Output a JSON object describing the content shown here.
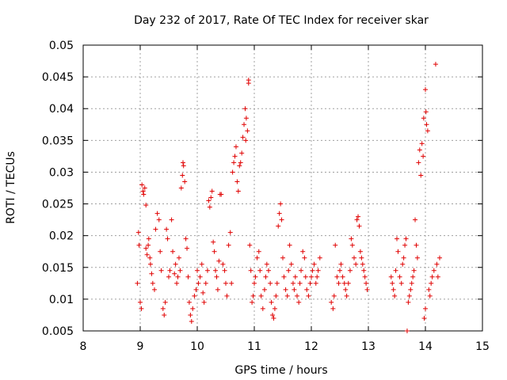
{
  "chart_data": {
    "type": "scatter",
    "title": "Day 232 of 2017, Rate Of TEC Index for receiver skar",
    "xlabel": "GPS time / hours",
    "ylabel": "ROTI / TECUs",
    "xlim": [
      8,
      15
    ],
    "ylim": [
      0.005,
      0.05
    ],
    "xticks": [
      "8",
      "9",
      "10",
      "11",
      "12",
      "13",
      "14",
      "15"
    ],
    "yticks": [
      "0.005",
      "0.01",
      "0.015",
      "0.02",
      "0.025",
      "0.03",
      "0.035",
      "0.04",
      "0.045",
      "0.05"
    ],
    "grid": true,
    "marker": "plus",
    "color": "#e00000",
    "series": [
      {
        "name": "ROTI",
        "points": [
          [
            8.95,
            0.0125
          ],
          [
            8.97,
            0.0205
          ],
          [
            8.98,
            0.0185
          ],
          [
            9.0,
            0.0095
          ],
          [
            9.02,
            0.0085
          ],
          [
            9.03,
            0.028
          ],
          [
            9.05,
            0.027
          ],
          [
            9.06,
            0.0265
          ],
          [
            9.08,
            0.0275
          ],
          [
            9.1,
            0.0248
          ],
          [
            9.1,
            0.018
          ],
          [
            9.12,
            0.017
          ],
          [
            9.14,
            0.0185
          ],
          [
            9.15,
            0.0195
          ],
          [
            9.17,
            0.0165
          ],
          [
            9.18,
            0.0155
          ],
          [
            9.2,
            0.014
          ],
          [
            9.22,
            0.0125
          ],
          [
            9.25,
            0.0115
          ],
          [
            9.27,
            0.021
          ],
          [
            9.3,
            0.0235
          ],
          [
            9.33,
            0.0225
          ],
          [
            9.35,
            0.0175
          ],
          [
            9.37,
            0.0145
          ],
          [
            9.4,
            0.0085
          ],
          [
            9.42,
            0.0075
          ],
          [
            9.44,
            0.0095
          ],
          [
            9.46,
            0.021
          ],
          [
            9.48,
            0.0195
          ],
          [
            9.5,
            0.0135
          ],
          [
            9.52,
            0.0145
          ],
          [
            9.55,
            0.0225
          ],
          [
            9.57,
            0.0175
          ],
          [
            9.6,
            0.014
          ],
          [
            9.62,
            0.0155
          ],
          [
            9.64,
            0.0125
          ],
          [
            9.66,
            0.0135
          ],
          [
            9.68,
            0.0165
          ],
          [
            9.7,
            0.0145
          ],
          [
            9.72,
            0.0275
          ],
          [
            9.74,
            0.0295
          ],
          [
            9.75,
            0.0315
          ],
          [
            9.76,
            0.031
          ],
          [
            9.78,
            0.0285
          ],
          [
            9.8,
            0.0195
          ],
          [
            9.82,
            0.018
          ],
          [
            9.84,
            0.0135
          ],
          [
            9.86,
            0.0095
          ],
          [
            9.88,
            0.0075
          ],
          [
            9.9,
            0.0065
          ],
          [
            9.92,
            0.0085
          ],
          [
            9.95,
            0.0105
          ],
          [
            9.98,
            0.0115
          ],
          [
            10.0,
            0.0145
          ],
          [
            10.02,
            0.0125
          ],
          [
            10.05,
            0.0135
          ],
          [
            10.08,
            0.0155
          ],
          [
            10.1,
            0.011
          ],
          [
            10.12,
            0.0095
          ],
          [
            10.15,
            0.0125
          ],
          [
            10.18,
            0.0145
          ],
          [
            10.2,
            0.0255
          ],
          [
            10.22,
            0.0245
          ],
          [
            10.24,
            0.026
          ],
          [
            10.26,
            0.027
          ],
          [
            10.28,
            0.019
          ],
          [
            10.3,
            0.0175
          ],
          [
            10.32,
            0.0145
          ],
          [
            10.34,
            0.0135
          ],
          [
            10.36,
            0.0115
          ],
          [
            10.38,
            0.016
          ],
          [
            10.4,
            0.0265
          ],
          [
            10.42,
            0.0265
          ],
          [
            10.45,
            0.0155
          ],
          [
            10.48,
            0.0145
          ],
          [
            10.5,
            0.0125
          ],
          [
            10.52,
            0.0105
          ],
          [
            10.55,
            0.0185
          ],
          [
            10.58,
            0.0205
          ],
          [
            10.6,
            0.0125
          ],
          [
            10.62,
            0.03
          ],
          [
            10.64,
            0.0315
          ],
          [
            10.66,
            0.0325
          ],
          [
            10.68,
            0.034
          ],
          [
            10.7,
            0.0285
          ],
          [
            10.72,
            0.027
          ],
          [
            10.74,
            0.031
          ],
          [
            10.76,
            0.0315
          ],
          [
            10.78,
            0.033
          ],
          [
            10.8,
            0.0355
          ],
          [
            10.82,
            0.0375
          ],
          [
            10.84,
            0.04
          ],
          [
            10.85,
            0.035
          ],
          [
            10.86,
            0.0385
          ],
          [
            10.88,
            0.0365
          ],
          [
            10.9,
            0.0445
          ],
          [
            10.9,
            0.044
          ],
          [
            10.92,
            0.0185
          ],
          [
            10.94,
            0.0145
          ],
          [
            10.96,
            0.0095
          ],
          [
            10.98,
            0.0105
          ],
          [
            11.0,
            0.0125
          ],
          [
            11.02,
            0.0135
          ],
          [
            11.05,
            0.0165
          ],
          [
            11.08,
            0.0175
          ],
          [
            11.1,
            0.0145
          ],
          [
            11.12,
            0.0105
          ],
          [
            11.15,
            0.0085
          ],
          [
            11.18,
            0.0115
          ],
          [
            11.2,
            0.0135
          ],
          [
            11.22,
            0.0155
          ],
          [
            11.25,
            0.0145
          ],
          [
            11.28,
            0.0125
          ],
          [
            11.3,
            0.0095
          ],
          [
            11.32,
            0.0075
          ],
          [
            11.34,
            0.007
          ],
          [
            11.36,
            0.0085
          ],
          [
            11.38,
            0.0105
          ],
          [
            11.4,
            0.0125
          ],
          [
            11.42,
            0.0215
          ],
          [
            11.44,
            0.0235
          ],
          [
            11.46,
            0.025
          ],
          [
            11.48,
            0.0225
          ],
          [
            11.5,
            0.0165
          ],
          [
            11.52,
            0.0135
          ],
          [
            11.55,
            0.0115
          ],
          [
            11.58,
            0.0105
          ],
          [
            11.6,
            0.0145
          ],
          [
            11.62,
            0.0185
          ],
          [
            11.65,
            0.0155
          ],
          [
            11.68,
            0.0125
          ],
          [
            11.7,
            0.0115
          ],
          [
            11.72,
            0.0135
          ],
          [
            11.75,
            0.0105
          ],
          [
            11.78,
            0.0095
          ],
          [
            11.8,
            0.0125
          ],
          [
            11.82,
            0.0145
          ],
          [
            11.85,
            0.0175
          ],
          [
            11.88,
            0.0165
          ],
          [
            11.9,
            0.0135
          ],
          [
            11.92,
            0.0115
          ],
          [
            11.95,
            0.0105
          ],
          [
            11.98,
            0.0125
          ],
          [
            12.0,
            0.0135
          ],
          [
            12.02,
            0.0145
          ],
          [
            12.05,
            0.0155
          ],
          [
            12.08,
            0.0125
          ],
          [
            12.1,
            0.0135
          ],
          [
            12.12,
            0.0145
          ],
          [
            12.15,
            0.0165
          ],
          [
            12.35,
            0.0095
          ],
          [
            12.38,
            0.0085
          ],
          [
            12.4,
            0.0105
          ],
          [
            12.42,
            0.0185
          ],
          [
            12.45,
            0.0135
          ],
          [
            12.48,
            0.0125
          ],
          [
            12.5,
            0.0145
          ],
          [
            12.52,
            0.0155
          ],
          [
            12.55,
            0.0135
          ],
          [
            12.58,
            0.0125
          ],
          [
            12.6,
            0.0115
          ],
          [
            12.62,
            0.0105
          ],
          [
            12.65,
            0.0125
          ],
          [
            12.68,
            0.0145
          ],
          [
            12.7,
            0.0195
          ],
          [
            12.72,
            0.0185
          ],
          [
            12.75,
            0.0165
          ],
          [
            12.78,
            0.0155
          ],
          [
            12.8,
            0.0225
          ],
          [
            12.82,
            0.023
          ],
          [
            12.84,
            0.0215
          ],
          [
            12.86,
            0.0175
          ],
          [
            12.88,
            0.0165
          ],
          [
            12.9,
            0.0155
          ],
          [
            12.92,
            0.0145
          ],
          [
            12.94,
            0.0135
          ],
          [
            12.96,
            0.0125
          ],
          [
            12.98,
            0.0115
          ],
          [
            13.4,
            0.0135
          ],
          [
            13.42,
            0.0125
          ],
          [
            13.44,
            0.0115
          ],
          [
            13.46,
            0.0105
          ],
          [
            13.48,
            0.0145
          ],
          [
            13.5,
            0.0195
          ],
          [
            13.52,
            0.0175
          ],
          [
            13.55,
            0.0135
          ],
          [
            13.58,
            0.0125
          ],
          [
            13.6,
            0.0155
          ],
          [
            13.62,
            0.0165
          ],
          [
            13.64,
            0.0185
          ],
          [
            13.66,
            0.0195
          ],
          [
            13.68,
            0.005
          ],
          [
            13.7,
            0.0095
          ],
          [
            13.72,
            0.0105
          ],
          [
            13.74,
            0.0115
          ],
          [
            13.76,
            0.0125
          ],
          [
            13.78,
            0.0135
          ],
          [
            13.8,
            0.0145
          ],
          [
            13.82,
            0.0225
          ],
          [
            13.84,
            0.0185
          ],
          [
            13.86,
            0.0165
          ],
          [
            13.88,
            0.0315
          ],
          [
            13.9,
            0.0335
          ],
          [
            13.92,
            0.0295
          ],
          [
            13.94,
            0.0345
          ],
          [
            13.96,
            0.0325
          ],
          [
            13.97,
            0.0385
          ],
          [
            13.98,
            0.007
          ],
          [
            14.0,
            0.0085
          ],
          [
            14.0,
            0.043
          ],
          [
            14.01,
            0.0395
          ],
          [
            14.02,
            0.0375
          ],
          [
            14.04,
            0.0365
          ],
          [
            14.06,
            0.0115
          ],
          [
            14.08,
            0.0105
          ],
          [
            14.1,
            0.0125
          ],
          [
            14.12,
            0.0135
          ],
          [
            14.15,
            0.0145
          ],
          [
            14.18,
            0.047
          ],
          [
            14.2,
            0.0155
          ],
          [
            14.22,
            0.0135
          ],
          [
            14.25,
            0.0165
          ]
        ]
      }
    ]
  }
}
